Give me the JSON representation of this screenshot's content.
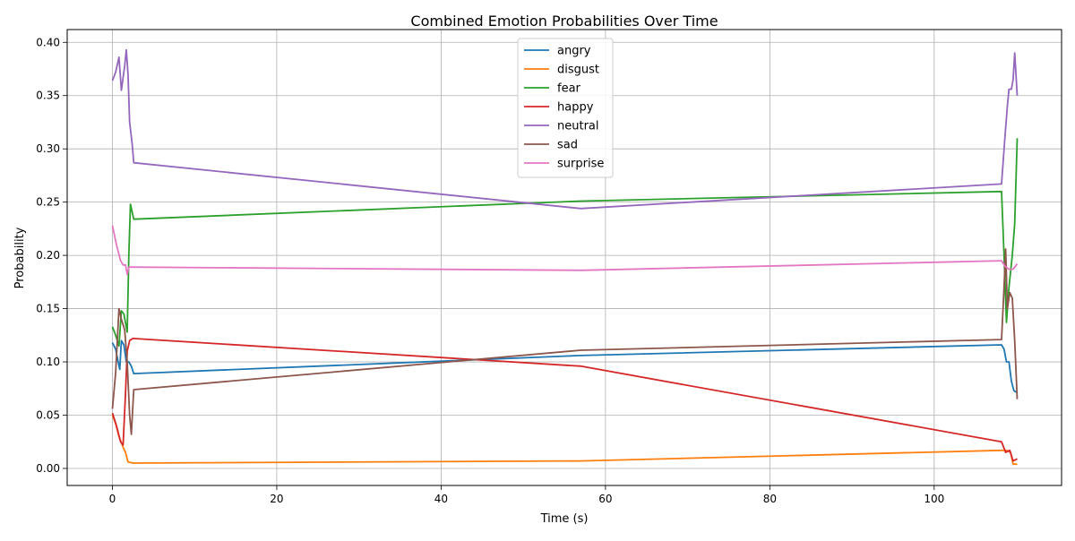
{
  "chart_data": {
    "type": "line",
    "title": "Combined Emotion Probabilities Over Time",
    "xlabel": "Time (s)",
    "ylabel": "Probability",
    "xlim": [
      -5.5,
      115.5
    ],
    "ylim": [
      -0.016,
      0.412
    ],
    "xticks": [
      0,
      20,
      40,
      60,
      80,
      100
    ],
    "xtick_labels": [
      "0",
      "20",
      "40",
      "60",
      "80",
      "100"
    ],
    "yticks": [
      0.0,
      0.05,
      0.1,
      0.15,
      0.2,
      0.25,
      0.3,
      0.35,
      0.4
    ],
    "ytick_labels": [
      "0.00",
      "0.05",
      "0.10",
      "0.15",
      "0.20",
      "0.25",
      "0.30",
      "0.35",
      "0.40"
    ],
    "grid": true,
    "legend_position": "top-center",
    "series": [
      {
        "name": "angry",
        "color": "#1f77b4",
        "points": [
          [
            0,
            0.118
          ],
          [
            0.4,
            0.112
          ],
          [
            0.7,
            0.1
          ],
          [
            0.9,
            0.093
          ],
          [
            1.1,
            0.12
          ],
          [
            1.4,
            0.116
          ],
          [
            1.7,
            0.1
          ],
          [
            2.0,
            0.1
          ],
          [
            2.3,
            0.096
          ],
          [
            2.6,
            0.089
          ],
          [
            57,
            0.106
          ],
          [
            108.2,
            0.116
          ],
          [
            108.5,
            0.112
          ],
          [
            108.8,
            0.1
          ],
          [
            109.1,
            0.1
          ],
          [
            109.4,
            0.082
          ],
          [
            109.7,
            0.073
          ],
          [
            110.1,
            0.071
          ]
        ]
      },
      {
        "name": "disgust",
        "color": "#ff7f0e",
        "points": [
          [
            0,
            0.05
          ],
          [
            0.4,
            0.042
          ],
          [
            0.8,
            0.03
          ],
          [
            1.3,
            0.02
          ],
          [
            1.6,
            0.015
          ],
          [
            1.9,
            0.006
          ],
          [
            2.5,
            0.005
          ],
          [
            57,
            0.007
          ],
          [
            108.2,
            0.017
          ],
          [
            108.8,
            0.017
          ],
          [
            109.3,
            0.015
          ],
          [
            109.6,
            0.004
          ],
          [
            110.1,
            0.004
          ]
        ]
      },
      {
        "name": "fear",
        "color": "#2ca02c",
        "points": [
          [
            0,
            0.133
          ],
          [
            0.4,
            0.125
          ],
          [
            0.8,
            0.115
          ],
          [
            1.1,
            0.148
          ],
          [
            1.4,
            0.145
          ],
          [
            1.8,
            0.128
          ],
          [
            2.0,
            0.2
          ],
          [
            2.2,
            0.248
          ],
          [
            2.6,
            0.234
          ],
          [
            57,
            0.251
          ],
          [
            108.2,
            0.26
          ],
          [
            108.5,
            0.2
          ],
          [
            108.8,
            0.137
          ],
          [
            109.1,
            0.17
          ],
          [
            109.5,
            0.2
          ],
          [
            109.8,
            0.23
          ],
          [
            110.1,
            0.31
          ]
        ]
      },
      {
        "name": "happy",
        "color": "#d62728",
        "points": [
          [
            0,
            0.052
          ],
          [
            0.5,
            0.04
          ],
          [
            1.0,
            0.025
          ],
          [
            1.3,
            0.022
          ],
          [
            1.6,
            0.07
          ],
          [
            1.8,
            0.11
          ],
          [
            2.1,
            0.12
          ],
          [
            2.5,
            0.122
          ],
          [
            57,
            0.096
          ],
          [
            108.2,
            0.025
          ],
          [
            108.7,
            0.015
          ],
          [
            109.2,
            0.017
          ],
          [
            109.6,
            0.007
          ],
          [
            110.1,
            0.009
          ]
        ]
      },
      {
        "name": "neutral",
        "color": "#9467bd",
        "points": [
          [
            0,
            0.364
          ],
          [
            0.4,
            0.372
          ],
          [
            0.8,
            0.386
          ],
          [
            1.1,
            0.355
          ],
          [
            1.5,
            0.378
          ],
          [
            1.7,
            0.393
          ],
          [
            1.9,
            0.37
          ],
          [
            2.1,
            0.325
          ],
          [
            2.4,
            0.305
          ],
          [
            2.6,
            0.287
          ],
          [
            57,
            0.244
          ],
          [
            108.2,
            0.267
          ],
          [
            108.6,
            0.31
          ],
          [
            108.9,
            0.34
          ],
          [
            109.1,
            0.356
          ],
          [
            109.4,
            0.356
          ],
          [
            109.6,
            0.365
          ],
          [
            109.8,
            0.39
          ],
          [
            110.1,
            0.35
          ]
        ]
      },
      {
        "name": "sad",
        "color": "#8c564b",
        "points": [
          [
            0,
            0.056
          ],
          [
            0.4,
            0.09
          ],
          [
            0.8,
            0.15
          ],
          [
            1.1,
            0.14
          ],
          [
            1.5,
            0.13
          ],
          [
            1.8,
            0.1
          ],
          [
            2.1,
            0.05
          ],
          [
            2.3,
            0.032
          ],
          [
            2.6,
            0.074
          ],
          [
            57,
            0.111
          ],
          [
            108.2,
            0.121
          ],
          [
            108.5,
            0.17
          ],
          [
            108.7,
            0.206
          ],
          [
            108.9,
            0.15
          ],
          [
            109.2,
            0.165
          ],
          [
            109.5,
            0.16
          ],
          [
            109.8,
            0.12
          ],
          [
            110.1,
            0.065
          ]
        ]
      },
      {
        "name": "surprise",
        "color": "#e377c2",
        "points": [
          [
            0,
            0.228
          ],
          [
            0.5,
            0.21
          ],
          [
            1.0,
            0.195
          ],
          [
            1.3,
            0.191
          ],
          [
            1.6,
            0.191
          ],
          [
            1.8,
            0.182
          ],
          [
            2.0,
            0.189
          ],
          [
            2.5,
            0.189
          ],
          [
            57,
            0.186
          ],
          [
            108.2,
            0.195
          ],
          [
            108.6,
            0.19
          ],
          [
            109.1,
            0.187
          ],
          [
            109.6,
            0.187
          ],
          [
            110.1,
            0.192
          ]
        ]
      }
    ]
  }
}
